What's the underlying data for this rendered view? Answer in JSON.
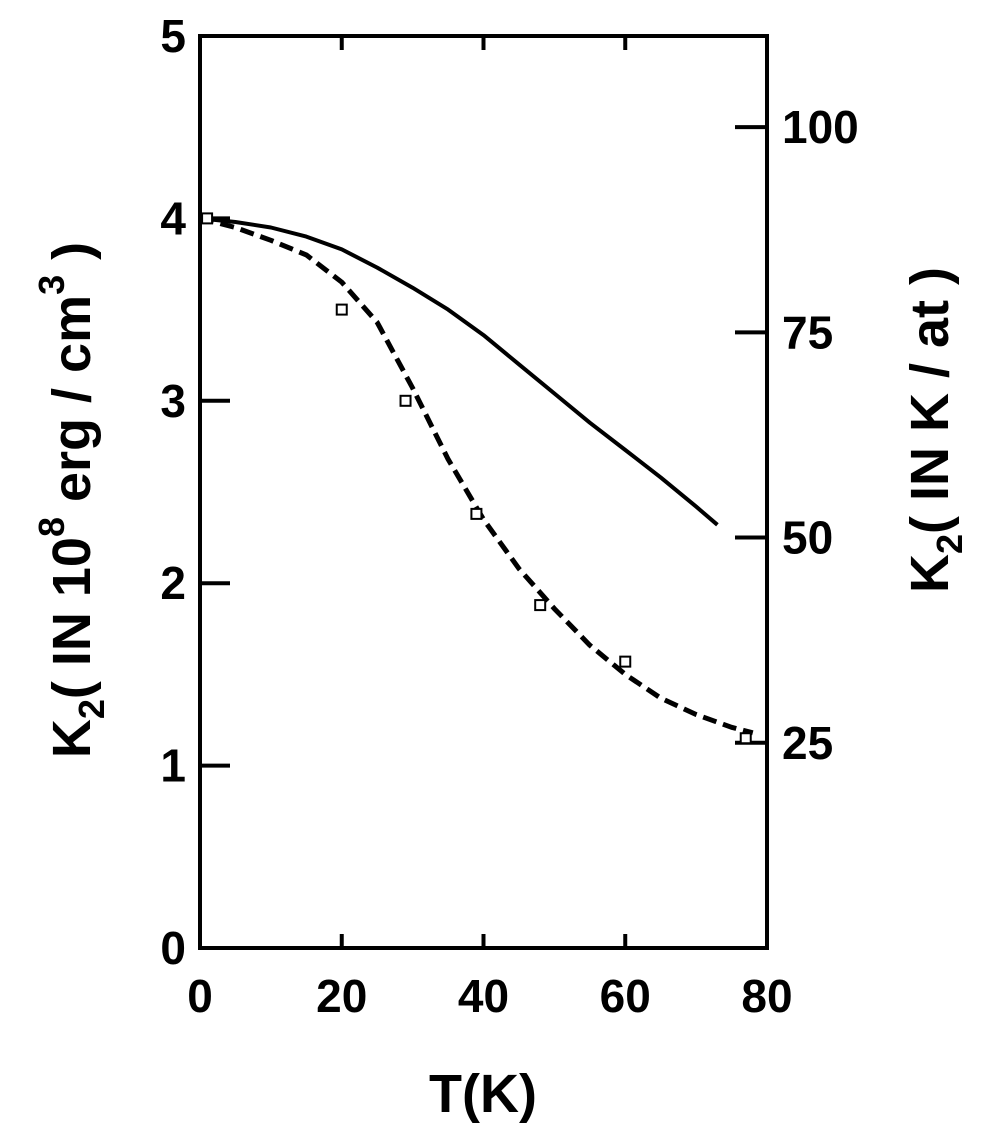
{
  "chart_data": {
    "type": "line",
    "xlabel": "T(K)",
    "ylabel": {
      "main": "K",
      "sub": "2",
      "rest": "( IN 10",
      "sup": "8",
      "tail": " erg / cm",
      "sup2": "3",
      "close": " )"
    },
    "ylabel_right": {
      "main": "K",
      "sub": "2",
      "rest": "( IN K / at )"
    },
    "xlim": [
      0,
      80
    ],
    "ylim": [
      0,
      5
    ],
    "ylim_right": [
      0,
      111.1
    ],
    "x_ticks": [
      "0",
      "20",
      "40",
      "60",
      "80"
    ],
    "y_ticks": [
      "0",
      "1",
      "2",
      "3",
      "4",
      "5"
    ],
    "y_ticks_right": [
      "25",
      "50",
      "75",
      "100"
    ],
    "grid": false,
    "series": [
      {
        "style": "solid",
        "x": [
          0,
          5,
          10,
          15,
          20,
          25,
          30,
          35,
          40,
          45,
          50,
          55,
          60,
          65,
          70,
          73
        ],
        "y": [
          4.0,
          3.98,
          3.95,
          3.9,
          3.83,
          3.73,
          3.62,
          3.5,
          3.36,
          3.2,
          3.04,
          2.88,
          2.73,
          2.58,
          2.42,
          2.32
        ]
      },
      {
        "style": "dashed",
        "x": [
          0,
          5,
          10,
          15,
          20,
          25,
          30,
          35,
          40,
          45,
          50,
          55,
          60,
          65,
          70,
          75,
          78
        ],
        "y": [
          4.0,
          3.95,
          3.88,
          3.8,
          3.65,
          3.43,
          3.07,
          2.68,
          2.35,
          2.08,
          1.86,
          1.66,
          1.5,
          1.37,
          1.28,
          1.21,
          1.18
        ]
      }
    ],
    "markers": {
      "x": [
        1,
        20,
        29,
        39,
        48,
        60,
        77
      ],
      "y": [
        4.0,
        3.5,
        3.0,
        2.38,
        1.88,
        1.57,
        1.15
      ]
    }
  }
}
